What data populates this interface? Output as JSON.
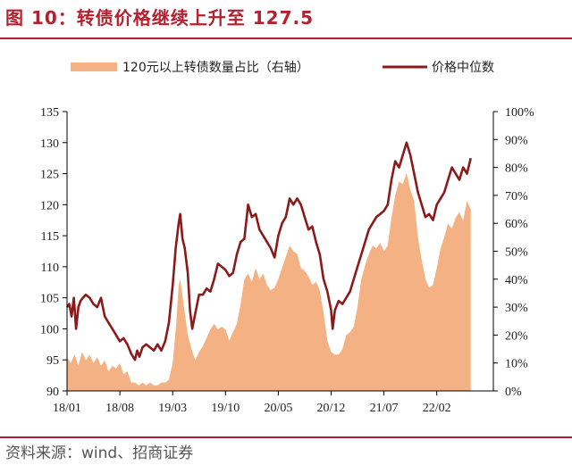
{
  "header": {
    "title": "图 10：转债价格继续上升至 127.5"
  },
  "footer": {
    "source": "资料来源：wind、招商证券"
  },
  "colors": {
    "title_red": "#b3202e",
    "line": "#8b1a1a",
    "area": "#f4b183"
  },
  "chart_data": {
    "type": "line",
    "x_ticks": [
      "18/01",
      "18/08",
      "19/03",
      "19/10",
      "20/05",
      "20/12",
      "21/07",
      "22/02"
    ],
    "y_left_ticks": [
      "90",
      "95",
      "100",
      "105",
      "110",
      "115",
      "120",
      "125",
      "130",
      "135"
    ],
    "y_right_ticks": [
      "0%",
      "10%",
      "20%",
      "30%",
      "40%",
      "50%",
      "60%",
      "70%",
      "80%",
      "90%",
      "100%"
    ],
    "ylim_left": [
      90,
      135
    ],
    "ylim_right": [
      0,
      100
    ],
    "x_range_months": [
      0,
      56.5
    ],
    "grid": false,
    "legend_position": "top",
    "series": [
      {
        "name": "120元以上转债数量占比（右轴）",
        "kind": "area",
        "axis": "right",
        "points": [
          [
            0,
            12
          ],
          [
            0.5,
            10
          ],
          [
            1,
            13
          ],
          [
            1.5,
            9
          ],
          [
            2,
            14
          ],
          [
            2.5,
            11
          ],
          [
            3,
            13
          ],
          [
            3.5,
            10
          ],
          [
            4,
            12
          ],
          [
            4.5,
            9
          ],
          [
            5,
            11
          ],
          [
            5.5,
            7
          ],
          [
            6,
            9
          ],
          [
            6.5,
            8
          ],
          [
            7,
            10
          ],
          [
            7.5,
            6
          ],
          [
            8,
            7
          ],
          [
            8.5,
            3
          ],
          [
            9,
            3
          ],
          [
            9.5,
            2
          ],
          [
            10,
            3
          ],
          [
            10.5,
            2
          ],
          [
            11,
            3
          ],
          [
            11.5,
            2
          ],
          [
            12,
            2
          ],
          [
            12.5,
            3
          ],
          [
            13,
            3
          ],
          [
            13.5,
            4
          ],
          [
            14,
            10
          ],
          [
            14.5,
            25
          ],
          [
            14.8,
            38
          ],
          [
            15,
            40
          ],
          [
            15.5,
            30
          ],
          [
            16,
            20
          ],
          [
            16.5,
            15
          ],
          [
            17,
            11
          ],
          [
            17.5,
            14
          ],
          [
            18,
            16
          ],
          [
            18.5,
            19
          ],
          [
            19,
            22
          ],
          [
            19.5,
            24
          ],
          [
            20,
            22
          ],
          [
            20.5,
            23
          ],
          [
            21,
            22
          ],
          [
            21.5,
            18
          ],
          [
            22,
            21
          ],
          [
            22.5,
            24
          ],
          [
            23,
            31
          ],
          [
            23.5,
            40
          ],
          [
            24,
            42
          ],
          [
            24.5,
            39
          ],
          [
            25,
            44
          ],
          [
            25.5,
            40
          ],
          [
            26,
            42
          ],
          [
            26.5,
            38
          ],
          [
            27,
            36
          ],
          [
            27.5,
            37
          ],
          [
            28,
            40
          ],
          [
            28.5,
            44
          ],
          [
            29,
            48
          ],
          [
            29.5,
            52
          ],
          [
            30,
            50
          ],
          [
            30.5,
            49
          ],
          [
            31,
            44
          ],
          [
            31.5,
            43
          ],
          [
            32,
            41
          ],
          [
            32.5,
            38
          ],
          [
            33,
            39
          ],
          [
            33.5,
            36
          ],
          [
            34,
            28
          ],
          [
            34.5,
            18
          ],
          [
            35,
            14
          ],
          [
            35.5,
            13
          ],
          [
            36,
            13
          ],
          [
            36.5,
            15
          ],
          [
            37,
            20
          ],
          [
            37.5,
            21
          ],
          [
            38,
            23
          ],
          [
            38.5,
            30
          ],
          [
            39,
            40
          ],
          [
            39.5,
            45
          ],
          [
            40,
            49
          ],
          [
            40.5,
            52
          ],
          [
            41,
            51
          ],
          [
            41.5,
            53
          ],
          [
            42,
            50
          ],
          [
            42.5,
            52
          ],
          [
            43,
            62
          ],
          [
            43.5,
            70
          ],
          [
            44,
            75
          ],
          [
            44.5,
            74
          ],
          [
            45,
            78
          ],
          [
            45.5,
            72
          ],
          [
            46,
            68
          ],
          [
            46.5,
            55
          ],
          [
            47,
            47
          ],
          [
            47.5,
            40
          ],
          [
            48,
            37
          ],
          [
            48.5,
            38
          ],
          [
            49,
            44
          ],
          [
            49.5,
            51
          ],
          [
            50,
            55
          ],
          [
            50.5,
            60
          ],
          [
            51,
            58
          ],
          [
            51.5,
            62
          ],
          [
            52,
            64
          ],
          [
            52.5,
            61
          ],
          [
            53,
            68
          ],
          [
            53.5,
            65
          ]
        ]
      },
      {
        "name": "价格中位数",
        "kind": "line",
        "axis": "left",
        "points": [
          [
            0,
            103.5
          ],
          [
            0.3,
            104
          ],
          [
            0.6,
            102
          ],
          [
            0.9,
            105
          ],
          [
            1.2,
            100
          ],
          [
            1.5,
            103.5
          ],
          [
            1.8,
            104.5
          ],
          [
            2.1,
            105
          ],
          [
            2.5,
            105.5
          ],
          [
            3,
            105
          ],
          [
            3.5,
            104
          ],
          [
            4,
            103.5
          ],
          [
            4.5,
            105
          ],
          [
            5,
            102
          ],
          [
            5.5,
            101
          ],
          [
            6,
            100
          ],
          [
            6.5,
            99
          ],
          [
            7,
            98
          ],
          [
            7.5,
            98.5
          ],
          [
            8,
            97.5
          ],
          [
            8.5,
            96
          ],
          [
            9,
            95
          ],
          [
            9.3,
            96.5
          ],
          [
            9.6,
            95.5
          ],
          [
            10,
            97
          ],
          [
            10.5,
            97.5
          ],
          [
            11,
            97
          ],
          [
            11.5,
            96.5
          ],
          [
            12,
            97.5
          ],
          [
            12.5,
            96.5
          ],
          [
            13,
            98
          ],
          [
            13.5,
            101
          ],
          [
            14,
            107
          ],
          [
            14.4,
            113
          ],
          [
            14.8,
            117
          ],
          [
            15,
            118.5
          ],
          [
            15.3,
            114.5
          ],
          [
            15.6,
            113
          ],
          [
            16,
            109
          ],
          [
            16.3,
            103
          ],
          [
            16.6,
            100
          ],
          [
            17,
            102.5
          ],
          [
            17.5,
            105.5
          ],
          [
            18,
            105.5
          ],
          [
            18.5,
            106.5
          ],
          [
            19,
            106
          ],
          [
            19.5,
            108
          ],
          [
            20,
            110.5
          ],
          [
            20.5,
            110
          ],
          [
            21,
            109.5
          ],
          [
            21.5,
            108.5
          ],
          [
            22,
            109
          ],
          [
            22.5,
            112
          ],
          [
            23,
            114
          ],
          [
            23.5,
            114.5
          ],
          [
            24,
            120
          ],
          [
            24.5,
            118
          ],
          [
            25,
            118.5
          ],
          [
            25.5,
            116
          ],
          [
            26,
            115
          ],
          [
            26.5,
            114
          ],
          [
            27,
            113
          ],
          [
            27.5,
            111.5
          ],
          [
            28,
            115
          ],
          [
            28.5,
            117
          ],
          [
            29,
            118
          ],
          [
            29.5,
            121
          ],
          [
            30,
            120
          ],
          [
            30.5,
            121
          ],
          [
            31,
            120
          ],
          [
            31.5,
            118
          ],
          [
            32,
            116
          ],
          [
            32.5,
            116.5
          ],
          [
            33,
            114
          ],
          [
            33.5,
            112
          ],
          [
            34,
            108
          ],
          [
            34.5,
            106
          ],
          [
            35,
            103
          ],
          [
            35.2,
            100
          ],
          [
            35.5,
            103
          ],
          [
            36,
            104.5
          ],
          [
            36.5,
            104
          ],
          [
            37,
            105
          ],
          [
            37.5,
            106
          ],
          [
            38,
            108
          ],
          [
            38.5,
            110
          ],
          [
            39,
            112
          ],
          [
            39.5,
            114
          ],
          [
            40,
            116
          ],
          [
            40.5,
            117
          ],
          [
            41,
            118
          ],
          [
            41.5,
            118.5
          ],
          [
            42,
            119
          ],
          [
            42.5,
            120
          ],
          [
            43,
            124
          ],
          [
            43.5,
            127
          ],
          [
            44,
            126
          ],
          [
            44.5,
            128
          ],
          [
            45,
            130
          ],
          [
            45.5,
            128
          ],
          [
            46,
            125
          ],
          [
            46.5,
            122
          ],
          [
            47,
            120
          ],
          [
            47.5,
            118
          ],
          [
            48,
            118.5
          ],
          [
            48.5,
            117.5
          ],
          [
            49,
            120
          ],
          [
            49.5,
            121
          ],
          [
            50,
            122
          ],
          [
            50.5,
            124
          ],
          [
            51,
            126
          ],
          [
            51.5,
            125
          ],
          [
            52,
            124
          ],
          [
            52.5,
            126
          ],
          [
            53,
            125
          ],
          [
            53.5,
            127.5
          ]
        ]
      }
    ]
  }
}
